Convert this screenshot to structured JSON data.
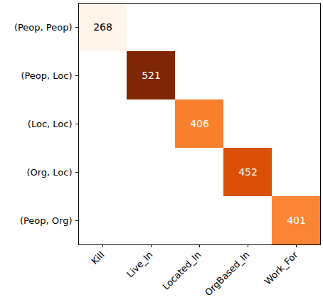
{
  "chart_data": {
    "type": "heatmap",
    "x": [
      "Kill",
      "Live_In",
      "Located_In",
      "OrgBased_In",
      "Work_For"
    ],
    "y": [
      "(Peop, Peop)",
      "(Peop, Loc)",
      "(Loc, Loc)",
      "(Org, Loc)",
      "(Peop, Org)"
    ],
    "cells": [
      [
        268,
        null,
        null,
        null,
        null
      ],
      [
        null,
        521,
        null,
        null,
        null
      ],
      [
        null,
        null,
        406,
        null,
        null
      ],
      [
        null,
        null,
        null,
        452,
        null
      ],
      [
        null,
        null,
        null,
        null,
        401
      ]
    ],
    "color": "Oranges",
    "data_labels": true
  }
}
